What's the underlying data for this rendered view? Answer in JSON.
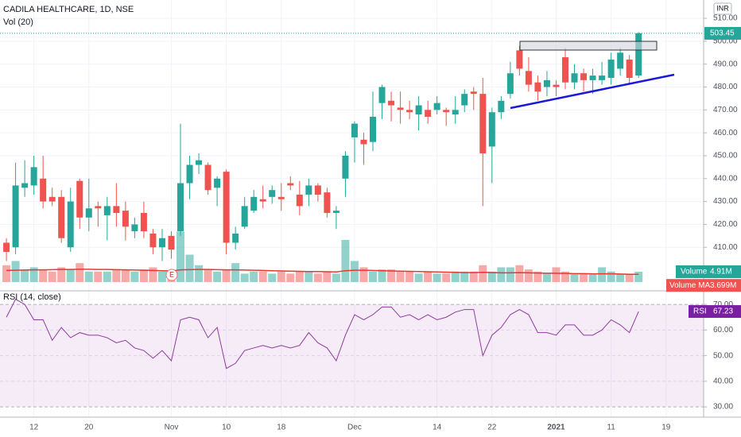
{
  "chart_data": [
    {
      "type": "candlestick",
      "title": "CADILA HEALTHCARE, 1D, NSE",
      "subtitle": "Vol (20)",
      "currency": "INR",
      "up_color": "#26a69a",
      "down_color": "#ef5350",
      "grid": true,
      "open": [
        412,
        410,
        436,
        437,
        440,
        432,
        432,
        410,
        439,
        423,
        428,
        424,
        428,
        426,
        417,
        425,
        416,
        410,
        415,
        417,
        438,
        446,
        446,
        436,
        443,
        412,
        419,
        426,
        431,
        432,
        432,
        438,
        433,
        433,
        437,
        434,
        425,
        440,
        458,
        457,
        456,
        473,
        474,
        471,
        470,
        468,
        470,
        470,
        470,
        468,
        472,
        478,
        477,
        454,
        469,
        477,
        496,
        487,
        482,
        480,
        481,
        493,
        482,
        486,
        483,
        483,
        484,
        488,
        492,
        485
      ],
      "high": [
        414,
        447,
        448,
        450,
        450,
        436,
        435,
        436,
        440,
        440,
        430,
        432,
        438,
        430,
        423,
        430,
        418,
        418,
        417,
        464,
        450,
        451,
        447,
        441,
        444,
        419,
        432,
        435,
        437,
        437,
        438,
        441,
        439,
        440,
        438,
        436,
        428,
        452,
        465,
        460,
        478,
        481,
        478,
        478,
        474,
        476,
        474,
        476,
        471,
        476,
        479,
        480,
        484,
        471,
        476,
        491,
        498,
        493,
        485,
        487,
        483,
        497,
        490,
        488,
        488,
        491,
        495,
        497,
        494,
        504
      ],
      "low": [
        404,
        407,
        432,
        433,
        427,
        428,
        412,
        408,
        418,
        417,
        419,
        413,
        419,
        413,
        414,
        414,
        407,
        404,
        405,
        415,
        431,
        442,
        433,
        428,
        407,
        409,
        418,
        425,
        427,
        429,
        426,
        435,
        424,
        428,
        430,
        423,
        418,
        432,
        447,
        446,
        452,
        466,
        465,
        464,
        466,
        461,
        464,
        468,
        463,
        464,
        469,
        470,
        428,
        438,
        466,
        475,
        485,
        478,
        474,
        476,
        476,
        479,
        479,
        478,
        477,
        481,
        481,
        485,
        481,
        484
      ],
      "close": [
        408,
        437,
        438,
        445,
        430,
        430,
        414,
        430,
        423,
        427,
        427,
        428,
        425,
        419,
        420,
        417,
        410,
        414,
        409,
        438,
        446,
        448,
        435,
        440,
        412,
        416,
        428,
        432,
        430,
        435,
        431,
        437,
        428,
        437,
        433,
        425,
        426,
        450,
        464,
        455,
        467,
        480,
        472,
        470,
        469,
        472,
        467,
        473,
        469,
        470,
        477,
        477,
        451,
        469,
        474,
        486,
        488,
        481,
        478,
        483,
        480,
        482,
        486,
        483,
        485,
        485,
        492,
        495,
        484,
        503.45
      ],
      "last_price": {
        "value": 503.45,
        "label": "503.45"
      },
      "xlim": [
        -0.7,
        76.1
      ],
      "ylim": [
        391,
        518
      ],
      "xticks": [
        {
          "value": 3,
          "label": "12"
        },
        {
          "value": 9,
          "label": "20"
        },
        {
          "value": 18,
          "label": "Nov"
        },
        {
          "value": 24,
          "label": "10"
        },
        {
          "value": 30,
          "label": "18"
        },
        {
          "value": 38,
          "label": "Dec"
        },
        {
          "value": 47,
          "label": "14"
        },
        {
          "value": 53,
          "label": "22"
        },
        {
          "value": 60,
          "label": "2021"
        },
        {
          "value": 66,
          "label": "11"
        },
        {
          "value": 72,
          "label": "19"
        }
      ],
      "yticks": [
        {
          "value": 410,
          "label": "410.00"
        },
        {
          "value": 420,
          "label": "420.00"
        },
        {
          "value": 430,
          "label": "430.00"
        },
        {
          "value": 440,
          "label": "440.00"
        },
        {
          "value": 450,
          "label": "450.00"
        },
        {
          "value": 460,
          "label": "460.00"
        },
        {
          "value": 470,
          "label": "470.00"
        },
        {
          "value": 480,
          "label": "480.00"
        },
        {
          "value": 490,
          "label": "490.00"
        },
        {
          "value": 500,
          "label": "500.00"
        },
        {
          "value": 510,
          "label": "510.00"
        }
      ],
      "volume": [
        8,
        10,
        6,
        7,
        6,
        5,
        7,
        6,
        9,
        5,
        5,
        5,
        6,
        6,
        5,
        6,
        7,
        5,
        5,
        24,
        13,
        8,
        6,
        5,
        6,
        9,
        4,
        5,
        5,
        4,
        5,
        4,
        5,
        5,
        4,
        5,
        4,
        20,
        10,
        7,
        5,
        6,
        6,
        5,
        5,
        4,
        5,
        4,
        4,
        5,
        5,
        5,
        8,
        5,
        7,
        7,
        8,
        6,
        5,
        4,
        7,
        5,
        4,
        4,
        4,
        7,
        5,
        4,
        4,
        4.91
      ],
      "volume_ma": [
        5.5,
        5.6,
        5.7,
        5.8,
        5.8,
        5.9,
        6,
        6,
        6.1,
        6.1,
        6,
        6,
        5.9,
        5.8,
        5.7,
        5.6,
        5.5,
        5.4,
        5.3,
        5.8,
        5.9,
        6,
        6,
        5.9,
        5.8,
        5.8,
        5.7,
        5.6,
        5.5,
        5.4,
        5.3,
        5.2,
        5.1,
        5,
        5,
        4.9,
        4.8,
        5.4,
        5.6,
        5.6,
        5.5,
        5.4,
        5.3,
        5.2,
        5.1,
        5,
        4.9,
        4.8,
        4.7,
        4.6,
        4.5,
        4.5,
        4.6,
        4.5,
        4.4,
        4.4,
        4.5,
        4.4,
        4.3,
        4.2,
        4.2,
        4.1,
        4,
        4,
        3.9,
        3.9,
        3.9,
        3.8,
        3.7,
        3.699
      ],
      "volume_ylim": [
        0,
        40
      ],
      "volume_name": "Volume",
      "volume_value_label": "4.91M",
      "volume_ma_name": "Volume MA",
      "volume_ma_value_label": "3.699M",
      "volume_ma_color": "#e53935",
      "event_marker": "E"
    },
    {
      "type": "line",
      "title": "RSI (14, close)",
      "name": "RSI",
      "color": "#8e3a9e",
      "values": [
        65,
        72,
        70,
        64,
        64,
        56,
        61,
        57,
        59,
        58,
        58,
        57,
        55,
        56,
        53,
        52,
        49,
        52,
        48,
        64,
        65,
        64,
        57,
        61,
        45,
        47,
        52,
        53,
        54,
        53,
        54,
        53,
        54,
        59,
        55,
        53,
        48,
        58,
        66,
        64,
        66,
        69,
        69,
        65,
        66,
        64,
        66,
        64,
        65,
        67,
        68,
        68,
        50,
        58,
        61,
        66,
        68,
        66,
        59,
        59,
        58,
        62,
        62,
        58,
        58,
        60,
        64,
        62,
        59,
        67.23
      ],
      "value_label": "67.23",
      "ylim": [
        26,
        75
      ],
      "yticks": [
        {
          "value": 30,
          "label": "30.00"
        },
        {
          "value": 40,
          "label": "40.00"
        },
        {
          "value": 50,
          "label": "50.00"
        },
        {
          "value": 60,
          "label": "60.00"
        },
        {
          "value": 70,
          "label": "70.00"
        }
      ]
    }
  ]
}
